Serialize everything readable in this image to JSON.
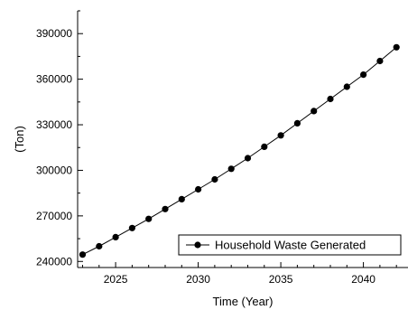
{
  "chart_data": {
    "type": "line",
    "xlabel": "Time (Year)",
    "ylabel": "(Ton)",
    "xlim": [
      2022.7,
      2042.7
    ],
    "ylim": [
      236000,
      405000
    ],
    "x_ticks": [
      2025,
      2030,
      2035,
      2040
    ],
    "y_ticks": [
      240000,
      270000,
      300000,
      330000,
      360000,
      390000
    ],
    "grid": false,
    "legend": {
      "placement": "bottom-right"
    },
    "series": [
      {
        "name": "Household Waste Generated",
        "color": "#000000",
        "marker": "circle",
        "x": [
          2023,
          2024,
          2025,
          2026,
          2027,
          2028,
          2029,
          2030,
          2031,
          2032,
          2033,
          2034,
          2035,
          2036,
          2037,
          2038,
          2039,
          2040,
          2041,
          2042
        ],
        "y": [
          244500,
          250000,
          256000,
          262000,
          268000,
          274500,
          281000,
          287500,
          294000,
          301000,
          308000,
          315500,
          323000,
          331000,
          339000,
          347000,
          355000,
          363000,
          372000,
          381000
        ]
      }
    ]
  }
}
